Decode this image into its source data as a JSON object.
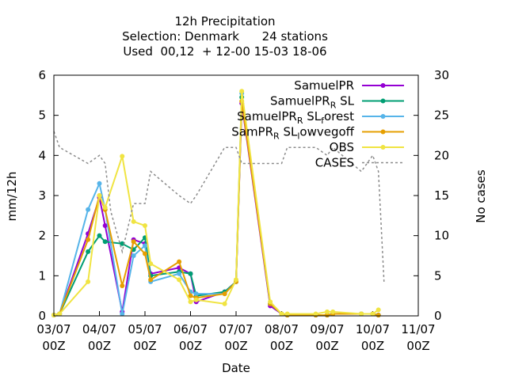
{
  "chart_data": {
    "type": "line",
    "title": [
      "12h Precipitation",
      "Selection: Denmark      24 stations",
      "Used  00,12  + 12-00 15-03 18-06"
    ],
    "xlabel": "Date",
    "ylabel": "mm/12h",
    "y2label": "No cases",
    "ylim": [
      0,
      6
    ],
    "y2lim": [
      0,
      30
    ],
    "xlim": [
      0,
      8
    ],
    "x_ticks": [
      {
        "x": 0,
        "top": "03/07",
        "bottom": "00Z"
      },
      {
        "x": 1,
        "top": "04/07",
        "bottom": "00Z"
      },
      {
        "x": 2,
        "top": "05/07",
        "bottom": "00Z"
      },
      {
        "x": 3,
        "top": "06/07",
        "bottom": "00Z"
      },
      {
        "x": 4,
        "top": "07/07",
        "bottom": "00Z"
      },
      {
        "x": 5,
        "top": "08/07",
        "bottom": "00Z"
      },
      {
        "x": 6,
        "top": "09/07",
        "bottom": "00Z"
      },
      {
        "x": 7,
        "top": "10/07",
        "bottom": "00Z"
      },
      {
        "x": 8,
        "top": "11/07",
        "bottom": "00Z"
      }
    ],
    "y_ticks": [
      "0",
      "1",
      "2",
      "3",
      "4",
      "5",
      "6"
    ],
    "y2_ticks": [
      "0",
      "5",
      "10",
      "15",
      "20",
      "25",
      "30"
    ],
    "grid": false,
    "legend_position": "top-right",
    "series": [
      {
        "name": "SamuelPR",
        "name_parts": [
          [
            "SamuelPR",
            ""
          ]
        ],
        "color": "#9400d3",
        "axis": "left",
        "marker": "point",
        "x": [
          0,
          0.125,
          0.75,
          1.0,
          1.125,
          1.5,
          1.75,
          2.0,
          2.125,
          2.75,
          3.0,
          3.125,
          3.75,
          4.0,
          4.125,
          4.75,
          5.0,
          5.125,
          5.75,
          6.0,
          6.125,
          6.75,
          7.0,
          7.125
        ],
        "y": [
          0.02,
          0.05,
          2.05,
          2.95,
          2.25,
          0.1,
          1.9,
          1.8,
          1.05,
          1.2,
          1.05,
          0.35,
          0.6,
          0.85,
          5.3,
          0.25,
          0.05,
          0.02,
          0.02,
          0.02,
          0.05,
          0.05,
          0.05,
          0.02
        ]
      },
      {
        "name": "SamuelPR_R SL",
        "name_parts": [
          [
            "SamuelPR",
            ""
          ],
          [
            "R",
            "sub"
          ],
          [
            " SL",
            ""
          ]
        ],
        "color": "#009e73",
        "axis": "left",
        "marker": "point",
        "x": [
          0,
          0.125,
          0.75,
          1.0,
          1.125,
          1.5,
          1.75,
          2.0,
          2.125,
          2.75,
          3.0,
          3.125,
          3.75,
          4.0,
          4.125,
          4.75,
          5.0,
          5.125,
          5.75,
          6.0,
          6.125,
          6.75,
          7.0,
          7.125
        ],
        "y": [
          0.02,
          0.05,
          1.6,
          2.0,
          1.85,
          1.8,
          1.65,
          1.95,
          1.0,
          1.1,
          1.05,
          0.5,
          0.6,
          0.85,
          5.45,
          0.3,
          0.05,
          0.02,
          0.02,
          0.02,
          0.05,
          0.05,
          0.05,
          0.02
        ]
      },
      {
        "name": "SamuelPR_R SL_forest",
        "name_parts": [
          [
            "SamuelPR",
            ""
          ],
          [
            "R",
            "sub"
          ],
          [
            " SL",
            ""
          ],
          [
            "f",
            "sub"
          ],
          [
            "orest",
            ""
          ]
        ],
        "color": "#56b4e9",
        "axis": "left",
        "marker": "point",
        "x": [
          0,
          0.125,
          0.75,
          1.0,
          1.125,
          1.5,
          1.75,
          2.0,
          2.125,
          2.75,
          3.0,
          3.125,
          3.75,
          4.0,
          4.125,
          4.75,
          5.0,
          5.125,
          5.75,
          6.0,
          6.125,
          6.75,
          7.0,
          7.125
        ],
        "y": [
          0.02,
          0.05,
          2.65,
          3.3,
          2.65,
          0.05,
          1.5,
          1.75,
          0.85,
          1.05,
          0.6,
          0.55,
          0.55,
          0.85,
          5.55,
          0.3,
          0.05,
          0.02,
          0.02,
          0.02,
          0.05,
          0.05,
          0.05,
          0.02
        ]
      },
      {
        "name": "SamPR_R SL_lowvegoff",
        "name_parts": [
          [
            "SamPR",
            ""
          ],
          [
            "R",
            "sub"
          ],
          [
            " SL",
            ""
          ],
          [
            "l",
            "sub"
          ],
          [
            "owvegoff",
            ""
          ]
        ],
        "color": "#e69f00",
        "axis": "left",
        "marker": "point",
        "x": [
          0,
          0.125,
          0.75,
          1.0,
          1.125,
          1.5,
          1.75,
          2.0,
          2.125,
          2.75,
          3.0,
          3.125,
          3.75,
          4.0,
          4.125,
          4.75,
          5.0,
          5.125,
          5.75,
          6.0,
          6.125,
          6.75,
          7.0,
          7.125
        ],
        "y": [
          0.02,
          0.05,
          1.9,
          3.0,
          2.65,
          0.75,
          1.85,
          1.55,
          0.9,
          1.35,
          0.5,
          0.45,
          0.55,
          0.85,
          5.35,
          0.3,
          0.05,
          0.02,
          0.02,
          0.02,
          0.05,
          0.05,
          0.05,
          0.02
        ]
      },
      {
        "name": "OBS",
        "name_parts": [
          [
            "OBS",
            ""
          ]
        ],
        "color": "#f0e442",
        "axis": "left",
        "marker": "point",
        "x": [
          0,
          0.125,
          0.75,
          1.0,
          1.125,
          1.5,
          1.75,
          2.0,
          2.125,
          2.75,
          3.0,
          3.125,
          3.75,
          4.0,
          4.125,
          4.75,
          5.0,
          5.125,
          5.75,
          6.0,
          6.125,
          6.75,
          7.0,
          7.125
        ],
        "y": [
          0.02,
          0.05,
          0.85,
          3.0,
          2.7,
          3.98,
          2.35,
          2.25,
          1.3,
          0.9,
          0.35,
          0.4,
          0.3,
          0.9,
          5.6,
          0.35,
          0.05,
          0.05,
          0.05,
          0.1,
          0.1,
          0.05,
          0.05,
          0.15
        ]
      },
      {
        "name": "CASES",
        "name_parts": [
          [
            "CASES",
            ""
          ]
        ],
        "color": "#8c8c8c",
        "axis": "right",
        "marker": "none",
        "dash": true,
        "x": [
          0,
          0.125,
          0.75,
          1.0,
          1.125,
          1.25,
          1.5,
          1.75,
          2.0,
          2.125,
          2.75,
          3.0,
          3.125,
          3.75,
          4.0,
          4.125,
          4.75,
          5.0,
          5.125,
          5.75,
          6.0,
          6.125,
          6.75,
          7.0,
          7.125,
          7.25
        ],
        "y": [
          23,
          21,
          19,
          20,
          19,
          13,
          8,
          14,
          14,
          18,
          15,
          14,
          15,
          21,
          21,
          19,
          19,
          19,
          21,
          21,
          20,
          21,
          18,
          20,
          18,
          4
        ]
      }
    ]
  }
}
